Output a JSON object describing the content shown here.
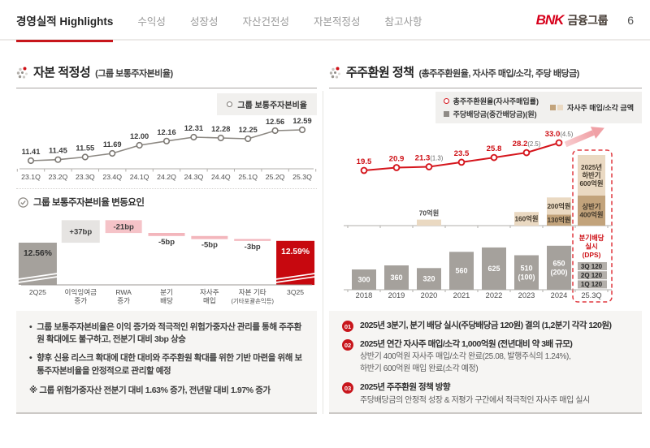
{
  "nav": {
    "tabs": [
      {
        "label": "경영실적 Highlights",
        "active": true
      },
      {
        "label": "수익성",
        "active": false
      },
      {
        "label": "성장성",
        "active": false
      },
      {
        "label": "자산건전성",
        "active": false
      },
      {
        "label": "자본적정성",
        "active": false
      },
      {
        "label": "참고사항",
        "active": false
      }
    ],
    "logo": {
      "brand": "BNK",
      "suffix": "금융그룹"
    },
    "page_number": "6"
  },
  "left_panel": {
    "title": "자본 적정성",
    "title_sub": "(그룹 보통주자본비율)",
    "legend_label": "그룹 보통주자본비율",
    "factors_title": "그룹 보통주자본비율 변동요인",
    "notes": [
      "그룹 보통주자본비율은 이익 증가와 적극적인 위험가중자산 관리를 통해 주주환원 확대에도 불구하고, 전분기 대비 3bp  상승",
      "향후 신용 리스크 확대에 대한 대비와 주주환원 확대를 위한 기반 마련을 위해 보통주자본비율을 안정적으로 관리할 예정"
    ],
    "footnote": "※ 그룹 위험가중자산 전분기 대비  1.63% 증가, 전년말 대비 1.97% 증가"
  },
  "right_panel": {
    "title": "주주환원 정책",
    "title_sub": "(총주주환원율, 자사주 매입/소각, 주당 배당금)",
    "legend": {
      "line": "총주주환원율(자사주매입률)",
      "dividend": "주당배당금(중간배당금)(원)",
      "buyback": "자사주 매입/소각 금액"
    },
    "items": [
      {
        "num": "01",
        "title": "2025년 3분기, 분기 배당 실시(주당배당금 120원) 결의 (1,2분기 각각 120원)",
        "subs": []
      },
      {
        "num": "02",
        "title": "2025년 연간 자사주 매입/소각 1,000억원 (전년대비 약 3배 규모)",
        "subs": [
          "상반기 400억원 자사주 매입/소각 완료(25.08, 발행주식의 1.24%),",
          "하반기 600억원 매입 완료(소각 예정)"
        ]
      },
      {
        "num": "03",
        "title": "2025년 주주환원 정책 방향",
        "subs": [
          "주당배당금의 안정적 성장 & 저평가 구간에서 적극적인 자사주 매입 실시"
        ]
      }
    ]
  },
  "chart_data": [
    {
      "id": "cet1_ratio",
      "type": "line",
      "title": "그룹 보통주자본비율 (%)",
      "legend": [
        "그룹 보통주자본비율"
      ],
      "categories": [
        "23.1Q",
        "23.2Q",
        "23.3Q",
        "23.4Q",
        "24.1Q",
        "24.2Q",
        "24.3Q",
        "24.4Q",
        "25.1Q",
        "25.2Q",
        "25.3Q"
      ],
      "values": [
        11.41,
        11.45,
        11.55,
        11.69,
        12.0,
        12.16,
        12.31,
        12.28,
        12.25,
        12.56,
        12.59
      ],
      "labels": [
        "11.41",
        "11.45",
        "11.55",
        "11.69",
        "12.00",
        "12.16",
        "12.31",
        "12.28",
        "12.25",
        "12.56",
        "12.59"
      ],
      "ylim": [
        11.3,
        12.8
      ],
      "grid": false
    },
    {
      "id": "cet1_waterfall",
      "type": "waterfall",
      "title": "그룹 보통주자본비율 변동요인",
      "unit": "bp",
      "steps": [
        {
          "labels": [
            "2Q25"
          ],
          "value_label": "12.56%",
          "value": 12.56,
          "kind": "start"
        },
        {
          "labels": [
            "이익잉여금",
            "증가"
          ],
          "value_label": "+37bp",
          "delta": 37,
          "kind": "up"
        },
        {
          "labels": [
            "RWA",
            "증가"
          ],
          "value_label": "-21bp",
          "delta": -21,
          "kind": "down"
        },
        {
          "labels": [
            "분기",
            "배당"
          ],
          "value_label": "-5bp",
          "delta": -5,
          "kind": "down"
        },
        {
          "labels": [
            "자사주",
            "매입"
          ],
          "value_label": "-5bp",
          "delta": -5,
          "kind": "down"
        },
        {
          "labels": [
            "자본 기타",
            "(기타포괄손익등)"
          ],
          "value_label": "-3bp",
          "delta": -3,
          "kind": "down"
        },
        {
          "labels": [
            "3Q25"
          ],
          "value_label": "12.59%",
          "value": 12.59,
          "kind": "end"
        }
      ]
    },
    {
      "id": "shareholder_return",
      "type": "combo",
      "categories": [
        "2018",
        "2019",
        "2020",
        "2021",
        "2022",
        "2023",
        "2024",
        "25.3Q"
      ],
      "line_series": {
        "name": "총주주환원율(자사주매입률)",
        "values": [
          19.5,
          20.9,
          21.3,
          23.5,
          25.8,
          28.2,
          33.0
        ],
        "labels": [
          {
            "main": "19.5",
            "paren": ""
          },
          {
            "main": "20.9",
            "paren": ""
          },
          {
            "main": "21.3",
            "paren": "(1.3)"
          },
          {
            "main": "23.5",
            "paren": ""
          },
          {
            "main": "25.8",
            "paren": ""
          },
          {
            "main": "28.2",
            "paren": "(2.5)"
          },
          {
            "main": "33.0",
            "paren": "(4.5)"
          }
        ]
      },
      "dividend_bars": {
        "name": "주당배당금(중간배당금)(원)",
        "values": [
          300,
          360,
          320,
          560,
          625,
          510,
          650
        ],
        "labels": [
          [
            "300"
          ],
          [
            "360"
          ],
          [
            "320"
          ],
          [
            "560"
          ],
          [
            "625"
          ],
          [
            "510",
            "(100)"
          ],
          [
            "650",
            "(200)"
          ]
        ]
      },
      "buyback_bars": {
        "name": "자사주 매입/소각 금액",
        "entries": [
          {
            "category": "2020",
            "segments": [
              {
                "amount": 70,
                "tone": "light",
                "label_lines": [
                  "70억원"
                ],
                "label_pos": "above"
              }
            ]
          },
          {
            "category": "2023",
            "segments": [
              {
                "amount": 160,
                "tone": "light",
                "label_lines": [
                  "160억원"
                ],
                "label_pos": "inside"
              }
            ]
          },
          {
            "category": "2024",
            "segments": [
              {
                "amount": 130,
                "tone": "dark",
                "label_lines": [
                  "130억원"
                ],
                "label_pos": "inside"
              },
              {
                "amount": 200,
                "tone": "light",
                "label_lines": [
                  "200억원"
                ],
                "label_pos": "inside"
              }
            ]
          },
          {
            "category": "25.3Q",
            "segments": [
              {
                "amount": 400,
                "tone": "dark",
                "label_lines": [
                  "상반기",
                  "400억원"
                ],
                "label_pos": "inside"
              },
              {
                "amount": 600,
                "tone": "light",
                "label_lines": [
                  "2025년",
                  "하반기",
                  "600억원"
                ],
                "label_pos": "inside"
              }
            ]
          }
        ]
      },
      "highlight": {
        "category": "25.3Q",
        "caption_lines": [
          "분기배당",
          "실시",
          "(DPS)"
        ],
        "dps_rows": [
          "3Q 120",
          "2Q 120",
          "1Q 120"
        ]
      }
    }
  ],
  "colors": {
    "accent_red": "#c8161c",
    "bar_red": "#c7080f",
    "line_red": "#d5161d",
    "label_red": "#ce1016",
    "line_gray": "#8c8882",
    "gray_bar": "#a5a19c",
    "light_gray_box": "#e6e4e2",
    "pink_box": "#f5c3c8",
    "pink_bar": "#f3b6bc",
    "tan_light": "#ead9c2",
    "tan_dark": "#c2a37b",
    "dps_row_bg": "#b3afaa",
    "axis": "#b2afab"
  }
}
